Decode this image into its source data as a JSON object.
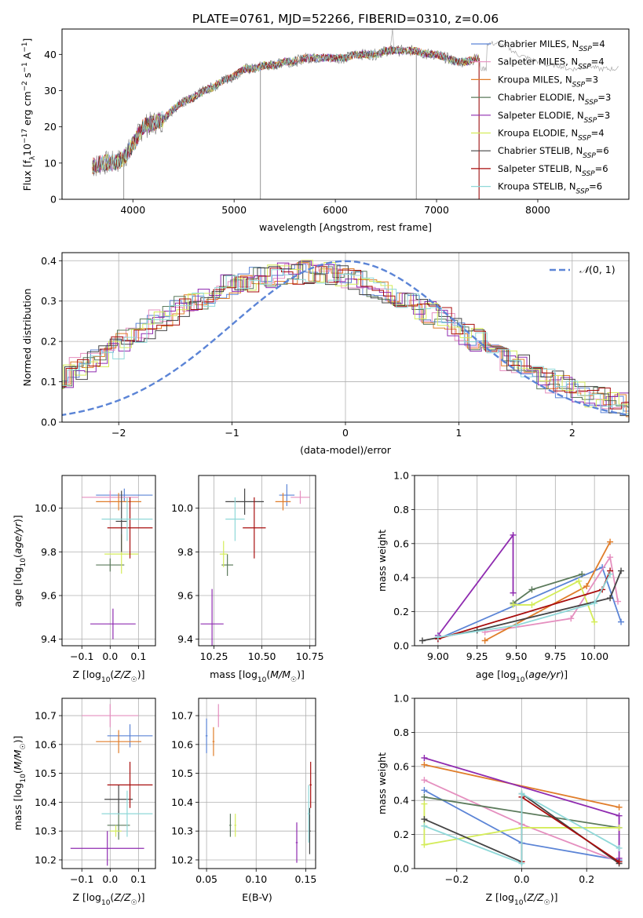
{
  "title": "PLATE=0761, MJD=52266, FIBERID=0310, z=0.06",
  "colors": {
    "Chabrier MILES": "#5b84d6",
    "Salpeter MILES": "#e58fbf",
    "Kroupa MILES": "#e07d2a",
    "Chabrier ELODIE": "#5b7a5b",
    "Salpeter ELODIE": "#8f2bb0",
    "Kroupa ELODIE": "#d4ec5a",
    "Chabrier STELIB": "#444444",
    "Salpeter STELIB": "#a80d0d",
    "Kroupa STELIB": "#8fd8d8"
  },
  "chart_data": [
    {
      "id": "spectrum",
      "type": "line",
      "title": "PLATE=0761, MJD=52266, FIBERID=0310, z=0.06",
      "xlabel": "wavelength [Angstrom, rest frame]",
      "ylabel": "Flux [f_λ 10^-17 erg cm^-2 s^-1 A^-1]",
      "xlim": [
        3300,
        8900
      ],
      "ylim": [
        0,
        47
      ],
      "xticks": [
        "4000",
        "5000",
        "6000",
        "7000",
        "8000"
      ],
      "yticks": [
        "0",
        "10",
        "20",
        "30",
        "40"
      ],
      "grid": false,
      "legend_position": "right",
      "legend": [
        {
          "model": "Chabrier MILES",
          "nssp": "4"
        },
        {
          "model": "Salpeter MILES",
          "nssp": "4"
        },
        {
          "model": "Kroupa MILES",
          "nssp": "3"
        },
        {
          "model": "Chabrier ELODIE",
          "nssp": "3"
        },
        {
          "model": "Salpeter ELODIE",
          "nssp": "3"
        },
        {
          "model": "Kroupa ELODIE",
          "nssp": "4"
        },
        {
          "model": "Chabrier STELIB",
          "nssp": "6"
        },
        {
          "model": "Salpeter STELIB",
          "nssp": "6"
        },
        {
          "model": "Kroupa STELIB",
          "nssp": "6"
        }
      ],
      "data_continuum": {
        "x": [
          3600,
          3700,
          3800,
          3900,
          4000,
          4100,
          4200,
          4300,
          4400,
          4500,
          4600,
          4700,
          4800,
          4900,
          5000,
          5100,
          5200,
          5300,
          5400,
          5500,
          5600,
          5700,
          5800,
          5900,
          6000,
          6100,
          6200,
          6300,
          6400,
          6500,
          6600,
          6700,
          6800,
          6900,
          7000,
          7100,
          7200,
          7300,
          7400
        ],
        "y": [
          9,
          10,
          10,
          11,
          15,
          20,
          21,
          22,
          25,
          27,
          28,
          30,
          31,
          33,
          34,
          36,
          36,
          37,
          37,
          38,
          38,
          39,
          39,
          39,
          39,
          39,
          40,
          40,
          40,
          41,
          41,
          41,
          41,
          40,
          40,
          39,
          38,
          38,
          39
        ]
      },
      "data_spikes": [
        {
          "x": 3910,
          "y": 0
        },
        {
          "x": 5260,
          "y": 0
        },
        {
          "x": 6800,
          "y": 0
        },
        {
          "x": 7420,
          "y": 0
        }
      ],
      "data_tail": {
        "x": [
          7500,
          7600,
          7700,
          7800,
          7900,
          8000,
          8100,
          8200,
          8300,
          8400,
          8500,
          8600,
          8700,
          8800
        ],
        "y": [
          43,
          43,
          42,
          40,
          39,
          38,
          37,
          37,
          36,
          36,
          37,
          36,
          36,
          36
        ]
      }
    },
    {
      "id": "residuals",
      "type": "histogram",
      "xlabel": "(data-model)/error",
      "ylabel": "Normed distribution",
      "xlim": [
        -2.5,
        2.5
      ],
      "ylim": [
        0,
        0.42
      ],
      "xticks": [
        "−2",
        "−1",
        "0",
        "1",
        "2"
      ],
      "yticks": [
        "0.0",
        "0.1",
        "0.2",
        "0.3",
        "0.4"
      ],
      "grid": true,
      "legend_position": "top-right",
      "reference_label": "N(0, 1)",
      "reference": {
        "mean": 0,
        "sigma": 1,
        "color": "#5b84d6",
        "style": "dashed"
      },
      "bin_width": 0.1,
      "series_shape": [
        0.022,
        0.025,
        0.03,
        0.036,
        0.044,
        0.053,
        0.062,
        0.075,
        0.088,
        0.1,
        0.115,
        0.132,
        0.15,
        0.165,
        0.185,
        0.2,
        0.215,
        0.232,
        0.25,
        0.265,
        0.282,
        0.298,
        0.31,
        0.322,
        0.335,
        0.345,
        0.35,
        0.355,
        0.36,
        0.365,
        0.37,
        0.372,
        0.37,
        0.368,
        0.362,
        0.355,
        0.345,
        0.335,
        0.322,
        0.31,
        0.3,
        0.285,
        0.27,
        0.255,
        0.24,
        0.222,
        0.205,
        0.188,
        0.172,
        0.155,
        0.14,
        0.125,
        0.11,
        0.098,
        0.086,
        0.075,
        0.066,
        0.058,
        0.05,
        0.044,
        0.038,
        0.033,
        0.029,
        0.026,
        0.023,
        0.021,
        0.02,
        0.02,
        0.02,
        0.02
      ]
    },
    {
      "id": "Z-age",
      "type": "scatter",
      "xlabel": "Z [log10(Z/Z☉)]",
      "ylabel": "age  [log10(age/yr)]",
      "xlim": [
        -0.17,
        0.16
      ],
      "ylim": [
        9.37,
        10.15
      ],
      "xticks": [
        "−0.1",
        "0.0",
        "0.1"
      ],
      "xtick_values": [
        -0.1,
        0.0,
        0.1
      ],
      "yticks": [
        "9.4",
        "9.6",
        "9.8",
        "10.0"
      ],
      "ytick_values": [
        9.4,
        9.6,
        9.8,
        10.0
      ],
      "grid": true,
      "points": [
        {
          "model": "Chabrier MILES",
          "x": 0.05,
          "xerr": 0.1,
          "y": 10.06,
          "yerr": 0.03
        },
        {
          "model": "Salpeter MILES",
          "x": 0.0,
          "xerr": 0.1,
          "y": 10.05,
          "yerr": 0.03
        },
        {
          "model": "Kroupa MILES",
          "x": 0.03,
          "xerr": 0.08,
          "y": 10.03,
          "yerr": 0.04
        },
        {
          "model": "Chabrier ELODIE",
          "x": 0.0,
          "xerr": 0.05,
          "y": 9.74,
          "yerr": 0.03
        },
        {
          "model": "Salpeter ELODIE",
          "x": 0.01,
          "xerr": 0.08,
          "y": 9.47,
          "yerr": 0.07
        },
        {
          "model": "Kroupa ELODIE",
          "x": 0.04,
          "xerr": 0.06,
          "y": 9.79,
          "yerr": 0.09
        },
        {
          "model": "Chabrier STELIB",
          "x": 0.04,
          "xerr": 0.02,
          "y": 9.94,
          "yerr": 0.14
        },
        {
          "model": "Salpeter STELIB",
          "x": 0.07,
          "xerr": 0.08,
          "y": 9.91,
          "yerr": 0.14
        },
        {
          "model": "Kroupa STELIB",
          "x": 0.06,
          "xerr": 0.09,
          "y": 9.95,
          "yerr": 0.1
        }
      ]
    },
    {
      "id": "mass-age",
      "type": "scatter",
      "xlabel": "mass [log10(M/M☉)]",
      "ylabel": "",
      "xlim": [
        10.17,
        10.78
      ],
      "ylim": [
        9.37,
        10.15
      ],
      "xticks": [
        "10.25",
        "10.50",
        "10.75"
      ],
      "xtick_values": [
        10.25,
        10.5,
        10.75
      ],
      "yticks": [
        "9.4",
        "9.6",
        "9.8",
        "10.0"
      ],
      "ytick_values": [
        9.4,
        9.6,
        9.8,
        10.0
      ],
      "grid": true,
      "points": [
        {
          "model": "Chabrier MILES",
          "x": 10.63,
          "xerr": 0.04,
          "y": 10.06,
          "yerr": 0.05
        },
        {
          "model": "Salpeter MILES",
          "x": 10.7,
          "xerr": 0.05,
          "y": 10.05,
          "yerr": 0.03
        },
        {
          "model": "Kroupa MILES",
          "x": 10.61,
          "xerr": 0.04,
          "y": 10.03,
          "yerr": 0.04
        },
        {
          "model": "Chabrier ELODIE",
          "x": 10.32,
          "xerr": 0.03,
          "y": 9.74,
          "yerr": 0.05
        },
        {
          "model": "Salpeter ELODIE",
          "x": 10.24,
          "xerr": 0.06,
          "y": 9.47,
          "yerr": 0.16
        },
        {
          "model": "Kroupa ELODIE",
          "x": 10.3,
          "xerr": 0.02,
          "y": 9.79,
          "yerr": 0.06
        },
        {
          "model": "Chabrier STELIB",
          "x": 10.41,
          "xerr": 0.1,
          "y": 10.03,
          "yerr": 0.06
        },
        {
          "model": "Salpeter STELIB",
          "x": 10.46,
          "xerr": 0.06,
          "y": 9.91,
          "yerr": 0.14
        },
        {
          "model": "Kroupa STELIB",
          "x": 10.36,
          "xerr": 0.05,
          "y": 9.95,
          "yerr": 0.1
        }
      ]
    },
    {
      "id": "age-weight",
      "type": "line",
      "xlabel": "age  [log10(age/yr)]",
      "ylabel": "mass weight",
      "xlim": [
        8.85,
        10.22
      ],
      "ylim": [
        0,
        1.0
      ],
      "xticks": [
        "9.00",
        "9.25",
        "9.50",
        "9.75",
        "10.00"
      ],
      "xtick_values": [
        9.0,
        9.25,
        9.5,
        9.75,
        10.0
      ],
      "yticks": [
        "0.0",
        "0.2",
        "0.4",
        "0.6",
        "0.8",
        "1.0"
      ],
      "ytick_values": [
        0.0,
        0.2,
        0.4,
        0.6,
        0.8,
        1.0
      ],
      "grid": true,
      "series": [
        {
          "model": "Chabrier MILES",
          "x": [
            9.0,
            10.05,
            10.17
          ],
          "y": [
            0.04,
            0.46,
            0.14
          ]
        },
        {
          "model": "Salpeter MILES",
          "x": [
            9.3,
            9.85,
            10.1,
            10.15
          ],
          "y": [
            0.08,
            0.16,
            0.52,
            0.26
          ]
        },
        {
          "model": "Kroupa MILES",
          "x": [
            9.3,
            9.95,
            10.1
          ],
          "y": [
            0.03,
            0.35,
            0.61
          ]
        },
        {
          "model": "Chabrier ELODIE",
          "x": [
            9.48,
            9.6,
            9.92
          ],
          "y": [
            0.25,
            0.33,
            0.42
          ]
        },
        {
          "model": "Salpeter ELODIE",
          "x": [
            9.0,
            9.48,
            9.48
          ],
          "y": [
            0.06,
            0.65,
            0.31
          ]
        },
        {
          "model": "Kroupa ELODIE",
          "x": [
            9.48,
            9.6,
            9.9,
            10.0
          ],
          "y": [
            0.24,
            0.24,
            0.38,
            0.14
          ]
        },
        {
          "model": "Chabrier STELIB",
          "x": [
            8.9,
            9.25,
            10.1,
            10.17
          ],
          "y": [
            0.03,
            0.09,
            0.28,
            0.44
          ]
        },
        {
          "model": "Salpeter STELIB",
          "x": [
            9.0,
            10.05,
            10.1
          ],
          "y": [
            0.04,
            0.33,
            0.44
          ]
        },
        {
          "model": "Kroupa STELIB",
          "x": [
            9.0,
            9.5,
            10.0,
            10.1
          ],
          "y": [
            0.05,
            0.12,
            0.25,
            0.42
          ]
        }
      ]
    },
    {
      "id": "Z-mass",
      "type": "scatter",
      "xlabel": "Z [log10(Z/Z☉)]",
      "ylabel": "mass [log10(M/M☉)]",
      "xlim": [
        -0.17,
        0.16
      ],
      "ylim": [
        10.17,
        10.76
      ],
      "xticks": [
        "−0.1",
        "0.0",
        "0.1"
      ],
      "xtick_values": [
        -0.1,
        0.0,
        0.1
      ],
      "yticks": [
        "10.2",
        "10.3",
        "10.4",
        "10.5",
        "10.6",
        "10.7"
      ],
      "ytick_values": [
        10.2,
        10.3,
        10.4,
        10.5,
        10.6,
        10.7
      ],
      "grid": true,
      "points": [
        {
          "model": "Chabrier MILES",
          "x": 0.07,
          "xerr": 0.08,
          "y": 10.63,
          "yerr": 0.04
        },
        {
          "model": "Salpeter MILES",
          "x": 0.0,
          "xerr": 0.1,
          "y": 10.7,
          "yerr": 0.04
        },
        {
          "model": "Kroupa MILES",
          "x": 0.03,
          "xerr": 0.08,
          "y": 10.61,
          "yerr": 0.04
        },
        {
          "model": "Chabrier ELODIE",
          "x": 0.03,
          "xerr": 0.04,
          "y": 10.32,
          "yerr": 0.05
        },
        {
          "model": "Salpeter ELODIE",
          "x": -0.01,
          "xerr": 0.13,
          "y": 10.24,
          "yerr": 0.06
        },
        {
          "model": "Kroupa ELODIE",
          "x": 0.02,
          "xerr": 0.02,
          "y": 10.3,
          "yerr": 0.02
        },
        {
          "model": "Chabrier STELIB",
          "x": 0.03,
          "xerr": 0.05,
          "y": 10.41,
          "yerr": 0.05
        },
        {
          "model": "Salpeter STELIB",
          "x": 0.07,
          "xerr": 0.08,
          "y": 10.46,
          "yerr": 0.08
        },
        {
          "model": "Kroupa STELIB",
          "x": 0.06,
          "xerr": 0.09,
          "y": 10.36,
          "yerr": 0.08
        }
      ]
    },
    {
      "id": "ebv-mass",
      "type": "scatter",
      "xlabel": "E(B-V)",
      "ylabel": "",
      "xlim": [
        0.042,
        0.16
      ],
      "ylim": [
        10.17,
        10.76
      ],
      "xticks": [
        "0.05",
        "0.10",
        "0.15"
      ],
      "xtick_values": [
        0.05,
        0.1,
        0.15
      ],
      "yticks": [
        "10.2",
        "10.3",
        "10.4",
        "10.5",
        "10.6",
        "10.7"
      ],
      "ytick_values": [
        10.2,
        10.3,
        10.4,
        10.5,
        10.6,
        10.7
      ],
      "grid": true,
      "points": [
        {
          "model": "Chabrier MILES",
          "x": 0.05,
          "xerr": 0.001,
          "y": 10.63,
          "yerr": 0.06
        },
        {
          "model": "Salpeter MILES",
          "x": 0.062,
          "xerr": 0.001,
          "y": 10.7,
          "yerr": 0.04
        },
        {
          "model": "Kroupa MILES",
          "x": 0.057,
          "xerr": 0.001,
          "y": 10.61,
          "yerr": 0.05
        },
        {
          "model": "Chabrier ELODIE",
          "x": 0.074,
          "xerr": 0.001,
          "y": 10.32,
          "yerr": 0.04
        },
        {
          "model": "Salpeter ELODIE",
          "x": 0.141,
          "xerr": 0.001,
          "y": 10.26,
          "yerr": 0.07
        },
        {
          "model": "Kroupa ELODIE",
          "x": 0.079,
          "xerr": 0.001,
          "y": 10.32,
          "yerr": 0.04
        },
        {
          "model": "Chabrier STELIB",
          "x": 0.154,
          "xerr": 0.001,
          "y": 10.3,
          "yerr": 0.08
        },
        {
          "model": "Salpeter STELIB",
          "x": 0.155,
          "xerr": 0.001,
          "y": 10.46,
          "yerr": 0.08
        },
        {
          "model": "Kroupa STELIB",
          "x": 0.153,
          "xerr": 0.001,
          "y": 10.36,
          "yerr": 0.1
        }
      ]
    },
    {
      "id": "Z-weight",
      "type": "line",
      "xlabel": "Z [log10(Z/Z☉)]",
      "ylabel": "mass weight",
      "xlim": [
        -0.33,
        0.33
      ],
      "ylim": [
        0,
        1.0
      ],
      "xticks": [
        "−0.2",
        "0.0",
        "0.2"
      ],
      "xtick_values": [
        -0.2,
        0.0,
        0.2
      ],
      "yticks": [
        "0.0",
        "0.2",
        "0.4",
        "0.6",
        "0.8",
        "1.0"
      ],
      "ytick_values": [
        0.0,
        0.2,
        0.4,
        0.6,
        0.8,
        1.0
      ],
      "grid": true,
      "series": [
        {
          "model": "Chabrier MILES",
          "x": [
            -0.3,
            0.0,
            0.3
          ],
          "y": [
            0.46,
            0.15,
            0.05
          ]
        },
        {
          "model": "Salpeter MILES",
          "x": [
            -0.3,
            0.0,
            0.3
          ],
          "y": [
            0.52,
            0.26,
            0.04
          ]
        },
        {
          "model": "Kroupa MILES",
          "x": [
            -0.3,
            0.3
          ],
          "y": [
            0.61,
            0.36
          ]
        },
        {
          "model": "Chabrier ELODIE",
          "x": [
            -0.3,
            0.3
          ],
          "y": [
            0.42,
            0.24
          ]
        },
        {
          "model": "Salpeter ELODIE",
          "x": [
            -0.3,
            0.3,
            0.3
          ],
          "y": [
            0.65,
            0.31,
            0.06
          ]
        },
        {
          "model": "Kroupa ELODIE",
          "x": [
            -0.3,
            -0.3,
            0.0,
            0.3
          ],
          "y": [
            0.38,
            0.14,
            0.24,
            0.24
          ]
        },
        {
          "model": "Chabrier STELIB",
          "x": [
            -0.3,
            0.0,
            0.0,
            0.3
          ],
          "y": [
            0.29,
            0.04,
            0.44,
            0.03
          ]
        },
        {
          "model": "Salpeter STELIB",
          "x": [
            0.0,
            0.0,
            0.3
          ],
          "y": [
            0.04,
            0.42,
            0.04
          ]
        },
        {
          "model": "Kroupa STELIB",
          "x": [
            -0.3,
            0.0,
            0.0,
            0.3
          ],
          "y": [
            0.25,
            0.03,
            0.44,
            0.12
          ]
        }
      ]
    }
  ]
}
